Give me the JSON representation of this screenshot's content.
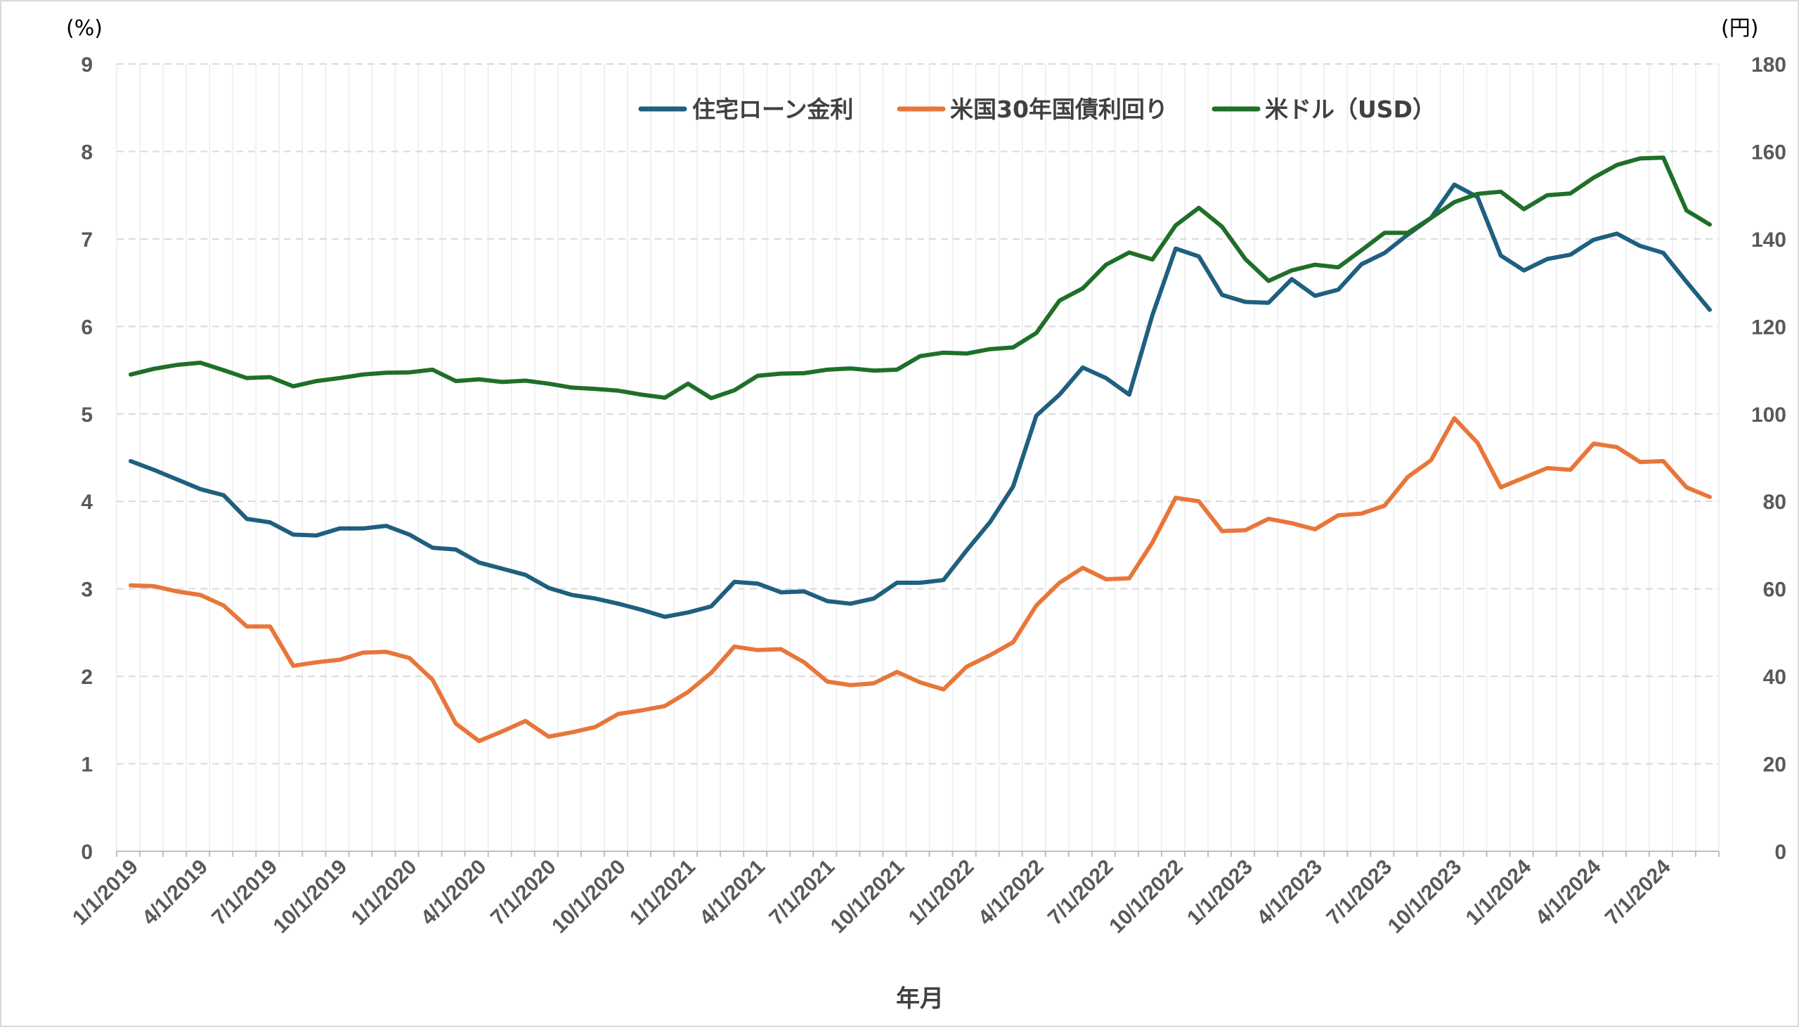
{
  "chart_data": {
    "type": "line",
    "xlabel": "年月",
    "y_left_unit": "(%)",
    "y_right_unit": "(円)",
    "ylim_left": [
      0,
      9
    ],
    "ylim_right": [
      0,
      180
    ],
    "y_left_ticks": [
      "0",
      "1",
      "2",
      "3",
      "4",
      "5",
      "6",
      "7",
      "8",
      "9"
    ],
    "y_right_ticks": [
      "0",
      "20",
      "40",
      "60",
      "80",
      "100",
      "120",
      "140",
      "160",
      "180"
    ],
    "x_tick_labels": [
      "1/1/2019",
      "4/1/2019",
      "7/1/2019",
      "10/1/2019",
      "1/1/2020",
      "4/1/2020",
      "7/1/2020",
      "10/1/2020",
      "1/1/2021",
      "4/1/2021",
      "7/1/2021",
      "10/1/2021",
      "1/1/2022",
      "4/1/2022",
      "7/1/2022",
      "10/1/2022",
      "1/1/2023",
      "4/1/2023",
      "7/1/2023",
      "10/1/2023",
      "1/1/2024",
      "4/1/2024",
      "7/1/2024"
    ],
    "grid": true,
    "legend_position": "top-center",
    "series": [
      {
        "name": "住宅ローン金利",
        "axis": "left",
        "color": "#1f5f7f",
        "values": [
          4.46,
          4.36,
          4.25,
          4.14,
          4.07,
          3.8,
          3.76,
          3.62,
          3.61,
          3.69,
          3.69,
          3.72,
          3.62,
          3.47,
          3.45,
          3.3,
          3.23,
          3.16,
          3.01,
          2.93,
          2.89,
          2.83,
          2.76,
          2.68,
          2.73,
          2.8,
          3.08,
          3.06,
          2.96,
          2.97,
          2.86,
          2.83,
          2.89,
          3.07,
          3.07,
          3.1,
          3.44,
          3.76,
          4.17,
          4.98,
          5.22,
          5.53,
          5.41,
          5.22,
          6.13,
          6.89,
          6.8,
          6.36,
          6.28,
          6.27,
          6.54,
          6.35,
          6.42,
          6.71,
          6.84,
          7.05,
          7.24,
          7.62,
          7.48,
          6.81,
          6.64,
          6.77,
          6.82,
          6.99,
          7.06,
          6.92,
          6.84,
          6.51,
          6.19
        ]
      },
      {
        "name": "米国30年国債利回り",
        "axis": "left",
        "color": "#e8763a",
        "values": [
          3.04,
          3.03,
          2.97,
          2.93,
          2.81,
          2.57,
          2.57,
          2.12,
          2.16,
          2.19,
          2.27,
          2.28,
          2.21,
          1.96,
          1.46,
          1.26,
          1.37,
          1.49,
          1.31,
          1.36,
          1.42,
          1.57,
          1.61,
          1.66,
          1.82,
          2.04,
          2.34,
          2.3,
          2.31,
          2.16,
          1.94,
          1.9,
          1.92,
          2.05,
          1.93,
          1.85,
          2.11,
          2.24,
          2.39,
          2.81,
          3.07,
          3.24,
          3.11,
          3.12,
          3.53,
          4.04,
          4.0,
          3.66,
          3.67,
          3.8,
          3.75,
          3.68,
          3.84,
          3.86,
          3.95,
          4.28,
          4.47,
          4.95,
          4.67,
          4.16,
          4.27,
          4.38,
          4.36,
          4.66,
          4.62,
          4.45,
          4.46,
          4.16,
          4.05
        ]
      },
      {
        "name": "米ドル（USD）",
        "axis": "right",
        "color": "#1f6f28",
        "values": [
          109,
          110.3,
          111.2,
          111.7,
          110,
          108.2,
          108.4,
          106.3,
          107.5,
          108.2,
          109,
          109.4,
          109.5,
          110.1,
          107.5,
          107.9,
          107.3,
          107.6,
          106.9,
          106,
          105.7,
          105.3,
          104.4,
          103.7,
          106.9,
          103.6,
          105.4,
          108.7,
          109.2,
          109.3,
          110.1,
          110.4,
          109.9,
          110.1,
          113.2,
          114,
          113.8,
          114.8,
          115.2,
          118.5,
          125.9,
          128.7,
          134.1,
          136.9,
          135.3,
          143.1,
          147.1,
          142.8,
          135.4,
          130.4,
          132.8,
          134.1,
          133.5,
          137.4,
          141.4,
          141.4,
          144.8,
          148.4,
          150.3,
          150.8,
          146.8,
          150,
          150.4,
          154,
          156.9,
          158.4,
          158.6,
          146.5,
          143.3
        ]
      }
    ]
  }
}
